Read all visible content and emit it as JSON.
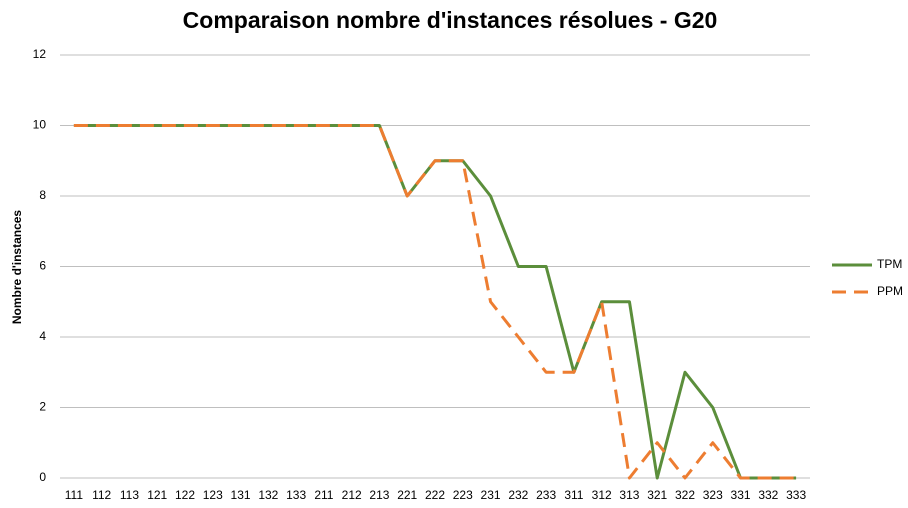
{
  "chart_data": {
    "type": "line",
    "title": "Comparaison nombre d'instances résolues - G20",
    "y_label": "Nombre d'instances",
    "categories": [
      "111",
      "112",
      "113",
      "121",
      "122",
      "123",
      "131",
      "132",
      "133",
      "211",
      "212",
      "213",
      "221",
      "222",
      "223",
      "231",
      "232",
      "233",
      "311",
      "312",
      "313",
      "321",
      "322",
      "323",
      "331",
      "332",
      "333"
    ],
    "series": [
      {
        "name": "TPM",
        "color": "#5b8e3b",
        "dash": false,
        "values": [
          10,
          10,
          10,
          10,
          10,
          10,
          10,
          10,
          10,
          10,
          10,
          10,
          8,
          9,
          9,
          8,
          6,
          6,
          3,
          5,
          5,
          0,
          3,
          2,
          0,
          0,
          0
        ]
      },
      {
        "name": "PPM",
        "color": "#ed7d31",
        "dash": true,
        "values": [
          10,
          10,
          10,
          10,
          10,
          10,
          10,
          10,
          10,
          10,
          10,
          10,
          8,
          9,
          9,
          5,
          4,
          3,
          3,
          5,
          0,
          1,
          0,
          1,
          0,
          0,
          0
        ]
      }
    ],
    "ylim": [
      0,
      12
    ],
    "yticks": [
      0,
      2,
      4,
      6,
      8,
      10,
      12
    ],
    "grid": true,
    "legend": "right"
  }
}
